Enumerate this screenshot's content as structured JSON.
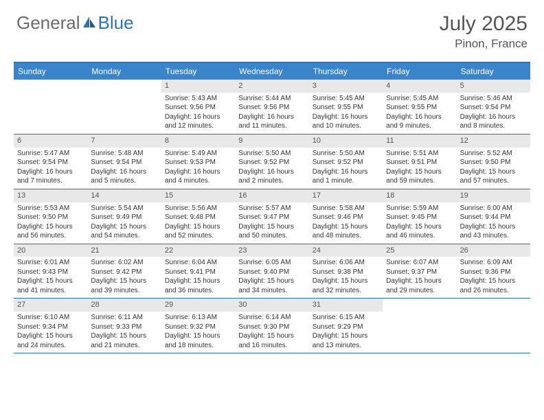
{
  "logo": {
    "text_general": "General",
    "text_blue": "Blue"
  },
  "title": {
    "month": "July 2025",
    "location": "Pinon, France"
  },
  "colors": {
    "header_bg": "#3a85c9",
    "border": "#2d72b8",
    "daynum_bg": "#e8e8e8",
    "text": "#333333",
    "title_text": "#555555"
  },
  "day_names": [
    "Sunday",
    "Monday",
    "Tuesday",
    "Wednesday",
    "Thursday",
    "Friday",
    "Saturday"
  ],
  "weeks": [
    [
      {
        "n": "",
        "sr": "",
        "ss": "",
        "dl": ""
      },
      {
        "n": "",
        "sr": "",
        "ss": "",
        "dl": ""
      },
      {
        "n": "1",
        "sr": "Sunrise: 5:43 AM",
        "ss": "Sunset: 9:56 PM",
        "dl": "Daylight: 16 hours and 12 minutes."
      },
      {
        "n": "2",
        "sr": "Sunrise: 5:44 AM",
        "ss": "Sunset: 9:56 PM",
        "dl": "Daylight: 16 hours and 11 minutes."
      },
      {
        "n": "3",
        "sr": "Sunrise: 5:45 AM",
        "ss": "Sunset: 9:55 PM",
        "dl": "Daylight: 16 hours and 10 minutes."
      },
      {
        "n": "4",
        "sr": "Sunrise: 5:45 AM",
        "ss": "Sunset: 9:55 PM",
        "dl": "Daylight: 16 hours and 9 minutes."
      },
      {
        "n": "5",
        "sr": "Sunrise: 5:46 AM",
        "ss": "Sunset: 9:54 PM",
        "dl": "Daylight: 16 hours and 8 minutes."
      }
    ],
    [
      {
        "n": "6",
        "sr": "Sunrise: 5:47 AM",
        "ss": "Sunset: 9:54 PM",
        "dl": "Daylight: 16 hours and 7 minutes."
      },
      {
        "n": "7",
        "sr": "Sunrise: 5:48 AM",
        "ss": "Sunset: 9:54 PM",
        "dl": "Daylight: 16 hours and 5 minutes."
      },
      {
        "n": "8",
        "sr": "Sunrise: 5:49 AM",
        "ss": "Sunset: 9:53 PM",
        "dl": "Daylight: 16 hours and 4 minutes."
      },
      {
        "n": "9",
        "sr": "Sunrise: 5:50 AM",
        "ss": "Sunset: 9:52 PM",
        "dl": "Daylight: 16 hours and 2 minutes."
      },
      {
        "n": "10",
        "sr": "Sunrise: 5:50 AM",
        "ss": "Sunset: 9:52 PM",
        "dl": "Daylight: 16 hours and 1 minute."
      },
      {
        "n": "11",
        "sr": "Sunrise: 5:51 AM",
        "ss": "Sunset: 9:51 PM",
        "dl": "Daylight: 15 hours and 59 minutes."
      },
      {
        "n": "12",
        "sr": "Sunrise: 5:52 AM",
        "ss": "Sunset: 9:50 PM",
        "dl": "Daylight: 15 hours and 57 minutes."
      }
    ],
    [
      {
        "n": "13",
        "sr": "Sunrise: 5:53 AM",
        "ss": "Sunset: 9:50 PM",
        "dl": "Daylight: 15 hours and 56 minutes."
      },
      {
        "n": "14",
        "sr": "Sunrise: 5:54 AM",
        "ss": "Sunset: 9:49 PM",
        "dl": "Daylight: 15 hours and 54 minutes."
      },
      {
        "n": "15",
        "sr": "Sunrise: 5:56 AM",
        "ss": "Sunset: 9:48 PM",
        "dl": "Daylight: 15 hours and 52 minutes."
      },
      {
        "n": "16",
        "sr": "Sunrise: 5:57 AM",
        "ss": "Sunset: 9:47 PM",
        "dl": "Daylight: 15 hours and 50 minutes."
      },
      {
        "n": "17",
        "sr": "Sunrise: 5:58 AM",
        "ss": "Sunset: 9:46 PM",
        "dl": "Daylight: 15 hours and 48 minutes."
      },
      {
        "n": "18",
        "sr": "Sunrise: 5:59 AM",
        "ss": "Sunset: 9:45 PM",
        "dl": "Daylight: 15 hours and 46 minutes."
      },
      {
        "n": "19",
        "sr": "Sunrise: 6:00 AM",
        "ss": "Sunset: 9:44 PM",
        "dl": "Daylight: 15 hours and 43 minutes."
      }
    ],
    [
      {
        "n": "20",
        "sr": "Sunrise: 6:01 AM",
        "ss": "Sunset: 9:43 PM",
        "dl": "Daylight: 15 hours and 41 minutes."
      },
      {
        "n": "21",
        "sr": "Sunrise: 6:02 AM",
        "ss": "Sunset: 9:42 PM",
        "dl": "Daylight: 15 hours and 39 minutes."
      },
      {
        "n": "22",
        "sr": "Sunrise: 6:04 AM",
        "ss": "Sunset: 9:41 PM",
        "dl": "Daylight: 15 hours and 36 minutes."
      },
      {
        "n": "23",
        "sr": "Sunrise: 6:05 AM",
        "ss": "Sunset: 9:40 PM",
        "dl": "Daylight: 15 hours and 34 minutes."
      },
      {
        "n": "24",
        "sr": "Sunrise: 6:06 AM",
        "ss": "Sunset: 9:38 PM",
        "dl": "Daylight: 15 hours and 32 minutes."
      },
      {
        "n": "25",
        "sr": "Sunrise: 6:07 AM",
        "ss": "Sunset: 9:37 PM",
        "dl": "Daylight: 15 hours and 29 minutes."
      },
      {
        "n": "26",
        "sr": "Sunrise: 6:09 AM",
        "ss": "Sunset: 9:36 PM",
        "dl": "Daylight: 15 hours and 26 minutes."
      }
    ],
    [
      {
        "n": "27",
        "sr": "Sunrise: 6:10 AM",
        "ss": "Sunset: 9:34 PM",
        "dl": "Daylight: 15 hours and 24 minutes."
      },
      {
        "n": "28",
        "sr": "Sunrise: 6:11 AM",
        "ss": "Sunset: 9:33 PM",
        "dl": "Daylight: 15 hours and 21 minutes."
      },
      {
        "n": "29",
        "sr": "Sunrise: 6:13 AM",
        "ss": "Sunset: 9:32 PM",
        "dl": "Daylight: 15 hours and 18 minutes."
      },
      {
        "n": "30",
        "sr": "Sunrise: 6:14 AM",
        "ss": "Sunset: 9:30 PM",
        "dl": "Daylight: 15 hours and 16 minutes."
      },
      {
        "n": "31",
        "sr": "Sunrise: 6:15 AM",
        "ss": "Sunset: 9:29 PM",
        "dl": "Daylight: 15 hours and 13 minutes."
      },
      {
        "n": "",
        "sr": "",
        "ss": "",
        "dl": ""
      },
      {
        "n": "",
        "sr": "",
        "ss": "",
        "dl": ""
      }
    ]
  ]
}
